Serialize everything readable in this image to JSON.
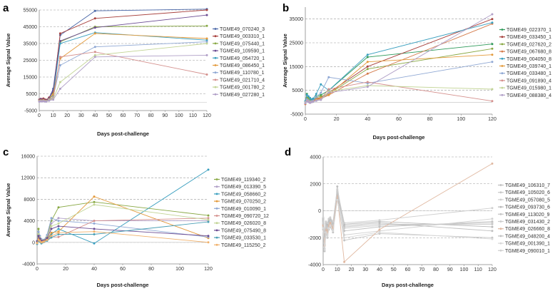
{
  "chart_data": [
    {
      "type": "line",
      "panel": "a",
      "xlabel": "Days post-challenge",
      "ylabel": "Average Signal Value",
      "xlim": [
        0,
        120
      ],
      "ylim": [
        -5000,
        55000
      ],
      "yticks": [
        -5000,
        5000,
        15000,
        25000,
        35000,
        45000,
        55000
      ],
      "xticks": [
        0,
        10,
        20,
        30,
        40,
        50,
        60,
        70,
        80,
        90,
        100,
        110,
        120
      ],
      "x": [
        0,
        1,
        2,
        3,
        4,
        5,
        7,
        10,
        15,
        40,
        120
      ],
      "series": [
        {
          "name": "TGME49_070240_3",
          "color": "#4a67a8",
          "values": [
            1000,
            1500,
            1200,
            1800,
            1500,
            1000,
            2500,
            8000,
            40000,
            54500,
            55500
          ]
        },
        {
          "name": "TGME49_003310_1",
          "color": "#a8413d",
          "values": [
            1500,
            2000,
            1800,
            2200,
            1600,
            1400,
            2800,
            6000,
            41000,
            50000,
            55000
          ]
        },
        {
          "name": "TGME49_075440_1",
          "color": "#88a843",
          "values": [
            800,
            1200,
            1000,
            1300,
            900,
            800,
            2000,
            5000,
            36000,
            45000,
            45500
          ]
        },
        {
          "name": "TGME49_109590_1",
          "color": "#6b4c93",
          "values": [
            1200,
            1800,
            1400,
            1600,
            1100,
            1000,
            2200,
            7000,
            36500,
            44500,
            52000
          ]
        },
        {
          "name": "TGME49_054720_1",
          "color": "#3a9fbf",
          "values": [
            700,
            1000,
            900,
            1100,
            800,
            700,
            1800,
            4000,
            35000,
            41500,
            37000
          ]
        },
        {
          "name": "TGME49_086450_1",
          "color": "#e39a3b",
          "values": [
            900,
            1100,
            950,
            1200,
            850,
            750,
            1700,
            4500,
            26000,
            41000,
            38000
          ]
        },
        {
          "name": "TGME49_110780_1",
          "color": "#8fa8d4",
          "values": [
            600,
            800,
            700,
            900,
            650,
            600,
            1500,
            3000,
            22000,
            33000,
            36000
          ]
        },
        {
          "name": "TGME49_021710_4",
          "color": "#d48f8c",
          "values": [
            500,
            700,
            600,
            800,
            550,
            500,
            1300,
            2500,
            27000,
            30000,
            16500
          ]
        },
        {
          "name": "TGME49_001780_2",
          "color": "#c2d495",
          "values": [
            400,
            600,
            500,
            700,
            450,
            400,
            1100,
            2000,
            12000,
            28000,
            35000
          ]
        },
        {
          "name": "TGME49_027280_1",
          "color": "#b09fc7",
          "values": [
            300,
            500,
            400,
            600,
            350,
            300,
            900,
            1500,
            8000,
            27000,
            28000
          ]
        }
      ]
    },
    {
      "type": "line",
      "panel": "b",
      "xlabel": "Days post-challenge",
      "ylabel": "Average Signal Value",
      "xlim": [
        0,
        120
      ],
      "ylim": [
        -5000,
        40000
      ],
      "yticks": [
        -5000,
        5000,
        15000,
        25000,
        35000
      ],
      "xticks": [
        0,
        20,
        40,
        60,
        80,
        100,
        120
      ],
      "x": [
        0,
        1,
        2,
        3,
        4,
        5,
        7,
        10,
        15,
        40,
        120
      ],
      "series": [
        {
          "name": "TGME49_022370_1",
          "color": "#2e9a5a",
          "values": [
            200,
            3500,
            2000,
            1000,
            500,
            800,
            2500,
            3000,
            5000,
            19000,
            24500
          ]
        },
        {
          "name": "TGME49_033450_1",
          "color": "#a8413d",
          "values": [
            -500,
            1000,
            500,
            0,
            300,
            500,
            1500,
            2000,
            4000,
            15000,
            35000
          ]
        },
        {
          "name": "TGME49_027620_2",
          "color": "#88a843",
          "values": [
            300,
            2000,
            1500,
            800,
            600,
            700,
            2000,
            2500,
            3500,
            14000,
            22500
          ]
        },
        {
          "name": "TGME49_067680_8",
          "color": "#d47a4a",
          "values": [
            -800,
            500,
            200,
            -200,
            100,
            300,
            1000,
            1500,
            3000,
            12000,
            33000
          ]
        },
        {
          "name": "TGME49_004050_8",
          "color": "#3a9fbf",
          "values": [
            500,
            3000,
            2500,
            1800,
            1200,
            1500,
            3500,
            7500,
            5000,
            20000,
            33500
          ]
        },
        {
          "name": "TGME49_039740_1",
          "color": "#e39a3b",
          "values": [
            0,
            800,
            400,
            100,
            200,
            400,
            1200,
            1800,
            3200,
            17000,
            20000
          ]
        },
        {
          "name": "TGME49_033480_1",
          "color": "#8fa8d4",
          "values": [
            100,
            1200,
            800,
            300,
            400,
            600,
            2200,
            4000,
            10500,
            8000,
            17000
          ]
        },
        {
          "name": "TGME49_091890_4",
          "color": "#d48f8c",
          "values": [
            -300,
            600,
            300,
            0,
            150,
            350,
            900,
            1400,
            5500,
            8500,
            500
          ]
        },
        {
          "name": "TGME49_015980_1",
          "color": "#c2d495",
          "values": [
            -200,
            400,
            200,
            -100,
            100,
            200,
            700,
            1100,
            4500,
            7000,
            5500
          ]
        },
        {
          "name": "TGME49_088380_4",
          "color": "#b09fc7",
          "values": [
            -400,
            300,
            100,
            -300,
            50,
            150,
            600,
            1000,
            4000,
            6500,
            37000
          ]
        }
      ]
    },
    {
      "type": "line",
      "panel": "c",
      "xlabel": "Days post-challenge",
      "ylabel": "Average Signal Value",
      "xlim": [
        0,
        120
      ],
      "ylim": [
        -4000,
        16000
      ],
      "yticks": [
        -4000,
        0,
        4000,
        8000,
        12000,
        16000
      ],
      "xticks": [
        0,
        20,
        40,
        60,
        80,
        100,
        120
      ],
      "x": [
        0,
        1,
        2,
        3,
        4,
        5,
        7,
        10,
        15,
        40,
        120
      ],
      "series": [
        {
          "name": "TGME49_119340_2",
          "color": "#88a843",
          "values": [
            200,
            2500,
            800,
            300,
            200,
            400,
            1200,
            4000,
            6500,
            7500,
            5000
          ]
        },
        {
          "name": "TGME49_013390_5",
          "color": "#b09fc7",
          "values": [
            100,
            1000,
            500,
            200,
            150,
            300,
            900,
            3500,
            4500,
            4000,
            4000
          ]
        },
        {
          "name": "TGME49_058660_2",
          "color": "#3a9fbf",
          "values": [
            0,
            600,
            300,
            0,
            100,
            200,
            500,
            1500,
            2500,
            -200,
            13500
          ]
        },
        {
          "name": "TGME49_070250_2",
          "color": "#e39a3b",
          "values": [
            -100,
            800,
            400,
            100,
            100,
            200,
            600,
            1800,
            2000,
            8500,
            800
          ]
        },
        {
          "name": "TGME49_010090_1",
          "color": "#8fa8d4",
          "values": [
            300,
            2000,
            1200,
            600,
            400,
            500,
            1400,
            4500,
            4000,
            3500,
            1000
          ]
        },
        {
          "name": "TGME49_090720_12",
          "color": "#d48f8c",
          "values": [
            -200,
            400,
            200,
            -100,
            50,
            150,
            400,
            1000,
            1000,
            4000,
            4500
          ]
        },
        {
          "name": "TGME49_026020_8",
          "color": "#c2d495",
          "values": [
            100,
            1500,
            900,
            400,
            300,
            400,
            1000,
            3000,
            3500,
            7000,
            4200
          ]
        },
        {
          "name": "TGME49_075490_8",
          "color": "#6b4c93",
          "values": [
            200,
            1200,
            700,
            300,
            250,
            350,
            800,
            2500,
            3000,
            2500,
            1200
          ]
        },
        {
          "name": "TGME49_033530_1",
          "color": "#4a9fb5",
          "values": [
            -300,
            300,
            100,
            -200,
            0,
            100,
            300,
            900,
            1500,
            1500,
            3800
          ]
        },
        {
          "name": "TGME49_115250_2",
          "color": "#f0b06a",
          "values": [
            -150,
            500,
            250,
            0,
            80,
            180,
            450,
            1200,
            1800,
            2000,
            0
          ]
        }
      ]
    },
    {
      "type": "line",
      "panel": "d",
      "xlabel": "Days post-challenge",
      "ylabel": "",
      "xlim": [
        0,
        120
      ],
      "ylim": [
        -4000,
        4000
      ],
      "yticks": [
        -4000,
        -2000,
        0,
        2000,
        4000
      ],
      "xticks": [
        0,
        10,
        20,
        30,
        40,
        50,
        60,
        70,
        80,
        90,
        100,
        110,
        120
      ],
      "x": [
        0,
        1,
        2,
        3,
        4,
        5,
        7,
        10,
        15,
        40,
        120
      ],
      "series": [
        {
          "name": "TGME49_106310_7",
          "color": "#bfbfbf",
          "values": [
            -1000,
            -2500,
            -1200,
            -1500,
            -1000,
            -800,
            -1200,
            1800,
            -1500,
            -1200,
            -800
          ]
        },
        {
          "name": "TGME49_105020_6",
          "color": "#c8c8c8",
          "values": [
            -800,
            -2000,
            -1000,
            -1200,
            -900,
            -700,
            -1000,
            1500,
            -1200,
            -1000,
            -1000
          ]
        },
        {
          "name": "TGME49_057080_5",
          "color": "#d0d0d0",
          "values": [
            -1200,
            -2800,
            -1500,
            -1800,
            -1200,
            -1000,
            -1400,
            1200,
            -1800,
            -1500,
            -600
          ]
        },
        {
          "name": "TGME49_093730_6",
          "color": "#b8b8b8",
          "values": [
            -600,
            -1800,
            -900,
            -1000,
            -700,
            -600,
            -900,
            1000,
            -1000,
            -800,
            -1200
          ]
        },
        {
          "name": "TGME49_113020_9",
          "color": "#c4c4c4",
          "values": [
            -1400,
            -3000,
            -1700,
            -2000,
            -1400,
            -1200,
            -1600,
            900,
            -2200,
            -1700,
            -2000
          ]
        },
        {
          "name": "TGME49_031430_2",
          "color": "#cccccc",
          "values": [
            -900,
            -2200,
            -1100,
            -1300,
            -950,
            -750,
            -1100,
            1300,
            -1300,
            -1100,
            -900
          ]
        },
        {
          "name": "TGME49_026660_8",
          "color": "#e0b8a0",
          "values": [
            -1100,
            -2600,
            -1400,
            -1600,
            -1100,
            -900,
            -1300,
            1100,
            -3800,
            -1400,
            3500
          ]
        },
        {
          "name": "TGME49_048200_4",
          "color": "#c0c0c0",
          "values": [
            -700,
            -1900,
            -950,
            -1100,
            -800,
            -650,
            -950,
            1400,
            -1100,
            -900,
            -1500
          ]
        },
        {
          "name": "TGME49_001390_1",
          "color": "#d8d8d8",
          "values": [
            -1300,
            -2900,
            -1600,
            -1900,
            -1300,
            -1100,
            -1500,
            800,
            -2000,
            -1600,
            -2100
          ]
        },
        {
          "name": "TGME49_090010_1",
          "color": "#cfcfcf",
          "values": [
            -500,
            -1600,
            -800,
            -900,
            -600,
            -500,
            -800,
            1600,
            -900,
            -700,
            200
          ]
        }
      ]
    }
  ]
}
